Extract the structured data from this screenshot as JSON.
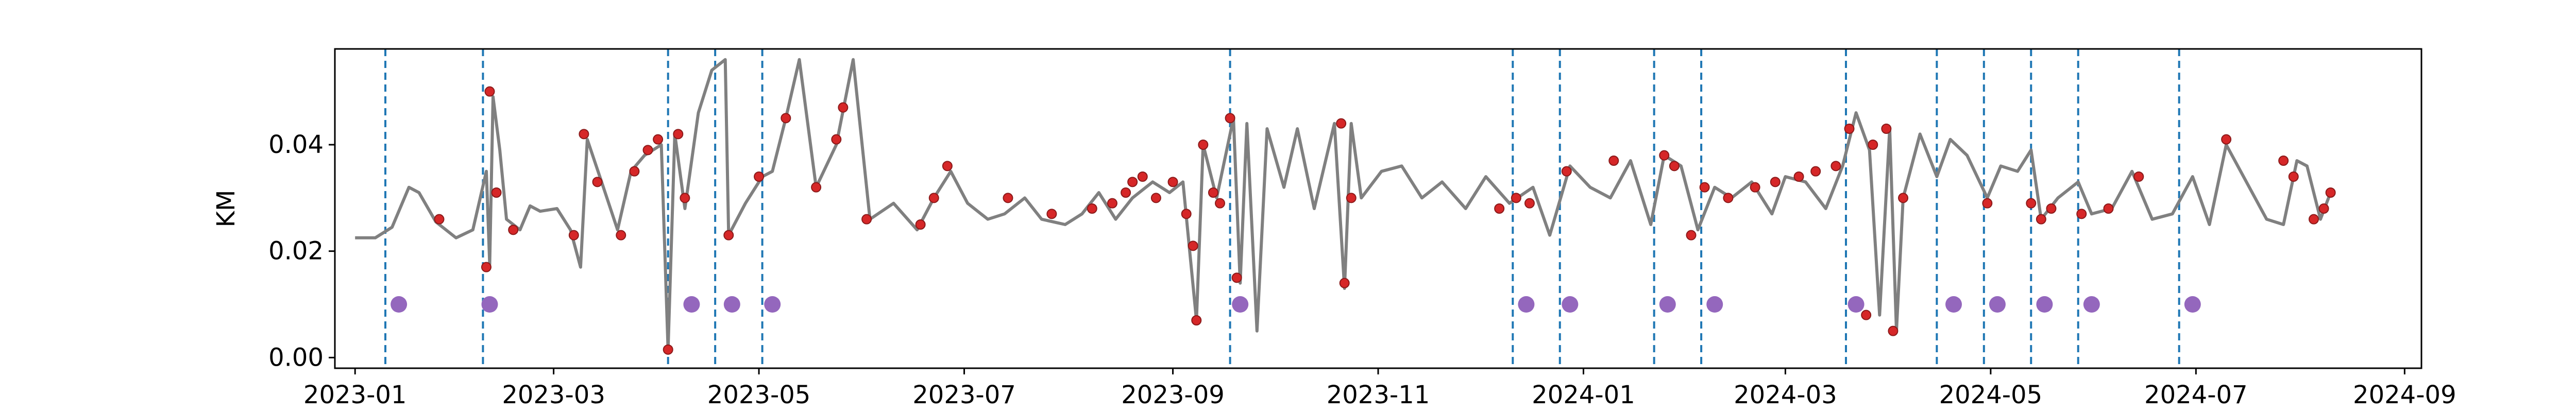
{
  "chart_data": {
    "type": "line",
    "title": "",
    "xlabel": "",
    "ylabel": "KM",
    "x_range": [
      "2022-12-26",
      "2024-09-06"
    ],
    "ylim": [
      -0.002,
      0.058
    ],
    "grid": false,
    "x_ticks": [
      "2023-01",
      "2023-03",
      "2023-05",
      "2023-07",
      "2023-09",
      "2023-11",
      "2024-01",
      "2024-03",
      "2024-05",
      "2024-07",
      "2024-09"
    ],
    "y_ticks": [
      "0.00",
      "0.02",
      "0.04"
    ],
    "y_tick_values": [
      0.0,
      0.02,
      0.04
    ],
    "colors": {
      "line": "#808080",
      "points_fill": "#d62728",
      "points_edge": "#8b1a1a",
      "vlines": "#1f77b4",
      "markers": "#9467bd",
      "axes": "#000000"
    },
    "series": [
      {
        "style": "line",
        "points": [
          [
            "2023-01-01",
            0.0225
          ],
          [
            "2023-01-07",
            0.0225
          ],
          [
            "2023-01-12",
            0.0245
          ],
          [
            "2023-01-17",
            0.032
          ],
          [
            "2023-01-20",
            0.031
          ],
          [
            "2023-01-25",
            0.0255
          ],
          [
            "2023-01-31",
            0.0225
          ],
          [
            "2023-02-05",
            0.024
          ],
          [
            "2023-02-09",
            0.035
          ],
          [
            "2023-02-10",
            0.0175
          ],
          [
            "2023-02-11",
            0.049
          ],
          [
            "2023-02-13",
            0.039
          ],
          [
            "2023-02-15",
            0.026
          ],
          [
            "2023-02-19",
            0.024
          ],
          [
            "2023-02-22",
            0.0285
          ],
          [
            "2023-02-25",
            0.0275
          ],
          [
            "2023-03-02",
            0.028
          ],
          [
            "2023-03-06",
            0.024
          ],
          [
            "2023-03-09",
            0.017
          ],
          [
            "2023-03-11",
            0.041
          ],
          [
            "2023-03-15",
            0.0335
          ],
          [
            "2023-03-20",
            0.024
          ],
          [
            "2023-03-24",
            0.035
          ],
          [
            "2023-03-28",
            0.038
          ],
          [
            "2023-04-02",
            0.04
          ],
          [
            "2023-04-04",
            0.0015
          ],
          [
            "2023-04-06",
            0.042
          ],
          [
            "2023-04-09",
            0.028
          ],
          [
            "2023-04-13",
            0.046
          ],
          [
            "2023-04-17",
            0.054
          ],
          [
            "2023-04-21",
            0.056
          ],
          [
            "2023-04-22",
            0.023
          ],
          [
            "2023-04-27",
            0.029
          ],
          [
            "2023-05-02",
            0.034
          ],
          [
            "2023-05-05",
            0.035
          ],
          [
            "2023-05-09",
            0.045
          ],
          [
            "2023-05-13",
            0.056
          ],
          [
            "2023-05-18",
            0.032
          ],
          [
            "2023-05-24",
            0.04
          ],
          [
            "2023-05-29",
            0.056
          ],
          [
            "2023-06-03",
            0.026
          ],
          [
            "2023-06-10",
            0.029
          ],
          [
            "2023-06-17",
            0.024
          ],
          [
            "2023-06-22",
            0.03
          ],
          [
            "2023-06-27",
            0.035
          ],
          [
            "2023-07-02",
            0.029
          ],
          [
            "2023-07-08",
            0.026
          ],
          [
            "2023-07-13",
            0.027
          ],
          [
            "2023-07-19",
            0.03
          ],
          [
            "2023-07-24",
            0.026
          ],
          [
            "2023-07-31",
            0.025
          ],
          [
            "2023-08-05",
            0.027
          ],
          [
            "2023-08-10",
            0.031
          ],
          [
            "2023-08-15",
            0.026
          ],
          [
            "2023-08-20",
            0.03
          ],
          [
            "2023-08-26",
            0.033
          ],
          [
            "2023-08-31",
            0.031
          ],
          [
            "2023-09-04",
            0.033
          ],
          [
            "2023-09-08",
            0.007
          ],
          [
            "2023-09-10",
            0.04
          ],
          [
            "2023-09-14",
            0.03
          ],
          [
            "2023-09-19",
            0.045
          ],
          [
            "2023-09-21",
            0.014
          ],
          [
            "2023-09-23",
            0.044
          ],
          [
            "2023-09-26",
            0.005
          ],
          [
            "2023-09-29",
            0.043
          ],
          [
            "2023-10-04",
            0.032
          ],
          [
            "2023-10-08",
            0.043
          ],
          [
            "2023-10-13",
            0.028
          ],
          [
            "2023-10-19",
            0.044
          ],
          [
            "2023-10-22",
            0.013
          ],
          [
            "2023-10-24",
            0.044
          ],
          [
            "2023-10-27",
            0.03
          ],
          [
            "2023-11-02",
            0.035
          ],
          [
            "2023-11-08",
            0.036
          ],
          [
            "2023-11-14",
            0.03
          ],
          [
            "2023-11-20",
            0.033
          ],
          [
            "2023-11-27",
            0.028
          ],
          [
            "2023-12-03",
            0.034
          ],
          [
            "2023-12-10",
            0.029
          ],
          [
            "2023-12-17",
            0.032
          ],
          [
            "2023-12-22",
            0.023
          ],
          [
            "2023-12-28",
            0.036
          ],
          [
            "2024-01-03",
            0.032
          ],
          [
            "2024-01-09",
            0.03
          ],
          [
            "2024-01-15",
            0.037
          ],
          [
            "2024-01-21",
            0.025
          ],
          [
            "2024-01-25",
            0.038
          ],
          [
            "2024-01-30",
            0.036
          ],
          [
            "2024-02-04",
            0.024
          ],
          [
            "2024-02-09",
            0.032
          ],
          [
            "2024-02-14",
            0.03
          ],
          [
            "2024-02-20",
            0.033
          ],
          [
            "2024-02-26",
            0.027
          ],
          [
            "2024-03-01",
            0.034
          ],
          [
            "2024-03-07",
            0.033
          ],
          [
            "2024-03-13",
            0.028
          ],
          [
            "2024-03-18",
            0.036
          ],
          [
            "2024-03-22",
            0.046
          ],
          [
            "2024-03-26",
            0.039
          ],
          [
            "2024-03-29",
            0.008
          ],
          [
            "2024-04-01",
            0.043
          ],
          [
            "2024-04-03",
            0.005
          ],
          [
            "2024-04-05",
            0.03
          ],
          [
            "2024-04-10",
            0.042
          ],
          [
            "2024-04-15",
            0.034
          ],
          [
            "2024-04-19",
            0.041
          ],
          [
            "2024-04-24",
            0.038
          ],
          [
            "2024-04-30",
            0.03
          ],
          [
            "2024-05-04",
            0.036
          ],
          [
            "2024-05-09",
            0.035
          ],
          [
            "2024-05-13",
            0.039
          ],
          [
            "2024-05-16",
            0.026
          ],
          [
            "2024-05-21",
            0.03
          ],
          [
            "2024-05-27",
            0.033
          ],
          [
            "2024-05-31",
            0.027
          ],
          [
            "2024-06-06",
            0.028
          ],
          [
            "2024-06-12",
            0.035
          ],
          [
            "2024-06-18",
            0.026
          ],
          [
            "2024-06-24",
            0.027
          ],
          [
            "2024-06-30",
            0.034
          ],
          [
            "2024-07-05",
            0.025
          ],
          [
            "2024-07-10",
            0.04
          ],
          [
            "2024-07-16",
            0.033
          ],
          [
            "2024-07-22",
            0.026
          ],
          [
            "2024-07-27",
            0.025
          ],
          [
            "2024-07-31",
            0.037
          ],
          [
            "2024-08-03",
            0.036
          ],
          [
            "2024-08-07",
            0.026
          ],
          [
            "2024-08-10",
            0.031
          ]
        ]
      },
      {
        "style": "points",
        "points": [
          [
            "2023-01-26",
            0.026
          ],
          [
            "2023-02-09",
            0.017
          ],
          [
            "2023-02-10",
            0.05
          ],
          [
            "2023-02-12",
            0.031
          ],
          [
            "2023-02-17",
            0.024
          ],
          [
            "2023-03-07",
            0.023
          ],
          [
            "2023-03-10",
            0.042
          ],
          [
            "2023-03-14",
            0.033
          ],
          [
            "2023-03-21",
            0.023
          ],
          [
            "2023-03-25",
            0.035
          ],
          [
            "2023-03-29",
            0.039
          ],
          [
            "2023-04-01",
            0.041
          ],
          [
            "2023-04-04",
            0.0015
          ],
          [
            "2023-04-07",
            0.042
          ],
          [
            "2023-04-09",
            0.03
          ],
          [
            "2023-04-22",
            0.023
          ],
          [
            "2023-05-01",
            0.034
          ],
          [
            "2023-05-09",
            0.045
          ],
          [
            "2023-05-18",
            0.032
          ],
          [
            "2023-05-24",
            0.041
          ],
          [
            "2023-05-26",
            0.047
          ],
          [
            "2023-06-02",
            0.026
          ],
          [
            "2023-06-18",
            0.025
          ],
          [
            "2023-06-22",
            0.03
          ],
          [
            "2023-06-26",
            0.036
          ],
          [
            "2023-07-14",
            0.03
          ],
          [
            "2023-07-27",
            0.027
          ],
          [
            "2023-08-08",
            0.028
          ],
          [
            "2023-08-14",
            0.029
          ],
          [
            "2023-08-18",
            0.031
          ],
          [
            "2023-08-20",
            0.033
          ],
          [
            "2023-08-23",
            0.034
          ],
          [
            "2023-08-27",
            0.03
          ],
          [
            "2023-09-01",
            0.033
          ],
          [
            "2023-09-05",
            0.027
          ],
          [
            "2023-09-07",
            0.021
          ],
          [
            "2023-09-08",
            0.007
          ],
          [
            "2023-09-10",
            0.04
          ],
          [
            "2023-09-13",
            0.031
          ],
          [
            "2023-09-15",
            0.029
          ],
          [
            "2023-09-18",
            0.045
          ],
          [
            "2023-09-20",
            0.015
          ],
          [
            "2023-10-21",
            0.044
          ],
          [
            "2023-10-22",
            0.014
          ],
          [
            "2023-10-24",
            0.03
          ],
          [
            "2023-12-07",
            0.028
          ],
          [
            "2023-12-12",
            0.03
          ],
          [
            "2023-12-16",
            0.029
          ],
          [
            "2023-12-27",
            0.035
          ],
          [
            "2024-01-10",
            0.037
          ],
          [
            "2024-01-25",
            0.038
          ],
          [
            "2024-01-28",
            0.036
          ],
          [
            "2024-02-02",
            0.023
          ],
          [
            "2024-02-06",
            0.032
          ],
          [
            "2024-02-13",
            0.03
          ],
          [
            "2024-02-21",
            0.032
          ],
          [
            "2024-02-27",
            0.033
          ],
          [
            "2024-03-05",
            0.034
          ],
          [
            "2024-03-10",
            0.035
          ],
          [
            "2024-03-16",
            0.036
          ],
          [
            "2024-03-20",
            0.043
          ],
          [
            "2024-03-25",
            0.008
          ],
          [
            "2024-03-27",
            0.04
          ],
          [
            "2024-03-31",
            0.043
          ],
          [
            "2024-04-02",
            0.005
          ],
          [
            "2024-04-05",
            0.03
          ],
          [
            "2024-04-30",
            0.029
          ],
          [
            "2024-05-13",
            0.029
          ],
          [
            "2024-05-16",
            0.026
          ],
          [
            "2024-05-19",
            0.028
          ],
          [
            "2024-05-28",
            0.027
          ],
          [
            "2024-06-05",
            0.028
          ],
          [
            "2024-06-14",
            0.034
          ],
          [
            "2024-07-10",
            0.041
          ],
          [
            "2024-07-27",
            0.037
          ],
          [
            "2024-07-30",
            0.034
          ],
          [
            "2024-08-05",
            0.026
          ],
          [
            "2024-08-08",
            0.028
          ],
          [
            "2024-08-10",
            0.031
          ]
        ]
      },
      {
        "style": "vlines",
        "values": [
          "2023-01-10",
          "2023-02-08",
          "2023-04-04",
          "2023-04-18",
          "2023-05-02",
          "2023-09-18",
          "2023-12-11",
          "2023-12-25",
          "2024-01-22",
          "2024-02-05",
          "2024-03-19",
          "2024-04-15",
          "2024-04-29",
          "2024-05-13",
          "2024-05-27",
          "2024-06-26"
        ]
      },
      {
        "style": "markers",
        "y": 0.01,
        "points": [
          "2023-01-14",
          "2023-02-10",
          "2023-04-11",
          "2023-04-23",
          "2023-05-05",
          "2023-09-21",
          "2023-12-15",
          "2023-12-28",
          "2024-01-26",
          "2024-02-09",
          "2024-03-22",
          "2024-04-20",
          "2024-05-03",
          "2024-05-17",
          "2024-05-31",
          "2024-06-30"
        ]
      }
    ]
  }
}
